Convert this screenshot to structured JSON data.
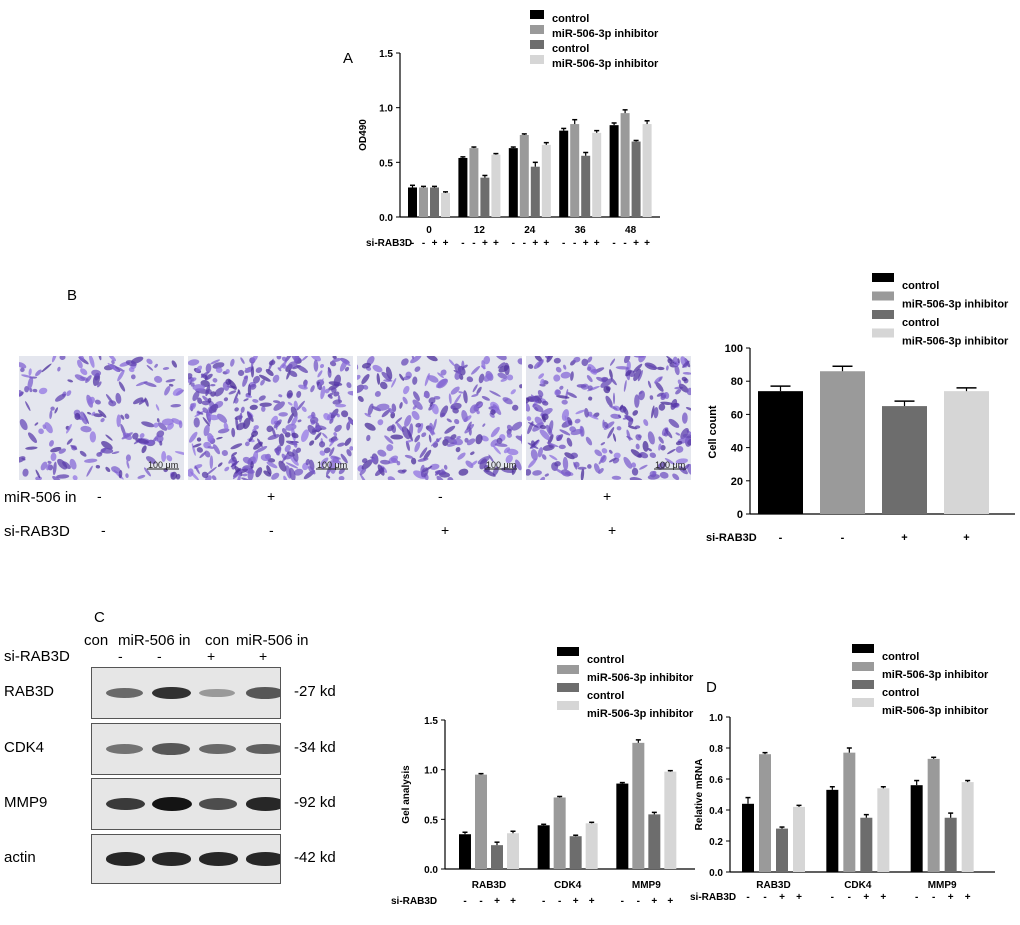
{
  "colors": {
    "control_black": "#000000",
    "inhibitor_mid": "#9a9a9a",
    "control_dark": "#6d6d6d",
    "inhibitor_light": "#d6d6d6"
  },
  "panels": {
    "A": "A",
    "B": "B",
    "C": "C",
    "D": "D"
  },
  "legend": {
    "items": [
      "control",
      "miR-506-3p inhibitor",
      "control",
      "miR-506-3p inhibitor"
    ]
  },
  "chart_data": [
    {
      "id": "A",
      "type": "bar",
      "ylabel": "OD490",
      "xlabel": "",
      "ylim": [
        0,
        1.5
      ],
      "yticks": [
        "0.0",
        "0.5",
        "1.0",
        "1.5"
      ],
      "categories": [
        "0",
        "12",
        "24",
        "36",
        "48"
      ],
      "series": [
        {
          "name": "control",
          "values": [
            0.27,
            0.54,
            0.63,
            0.79,
            0.84
          ],
          "errors": [
            0.02,
            0.01,
            0.01,
            0.02,
            0.02
          ]
        },
        {
          "name": "miR-506-3p inhibitor",
          "values": [
            0.27,
            0.63,
            0.75,
            0.85,
            0.95
          ],
          "errors": [
            0.01,
            0.01,
            0.01,
            0.04,
            0.03
          ]
        },
        {
          "name": "control",
          "values": [
            0.27,
            0.36,
            0.46,
            0.56,
            0.69
          ],
          "errors": [
            0.01,
            0.02,
            0.04,
            0.03,
            0.01
          ]
        },
        {
          "name": "miR-506-3p inhibitor",
          "values": [
            0.22,
            0.57,
            0.66,
            0.77,
            0.85
          ],
          "errors": [
            0.01,
            0.01,
            0.02,
            0.02,
            0.03
          ]
        }
      ],
      "treatment_label": "si-RAB3D",
      "treatment_signs": [
        "-",
        "-",
        "+",
        "+"
      ]
    },
    {
      "id": "B",
      "type": "bar",
      "ylabel": "Cell count",
      "xlabel": "",
      "ylim": [
        0,
        100
      ],
      "yticks": [
        "0",
        "20",
        "40",
        "60",
        "80",
        "100"
      ],
      "categories": [
        "",
        "",
        "",
        ""
      ],
      "series": [
        {
          "name": "control",
          "values": [
            74,
            0,
            0,
            0
          ],
          "errors": [
            3,
            0,
            0,
            0
          ]
        },
        {
          "name": "miR-506-3p inhibitor",
          "values": [
            0,
            86,
            0,
            0
          ],
          "errors": [
            0,
            3,
            0,
            0
          ]
        },
        {
          "name": "control",
          "values": [
            0,
            0,
            65,
            0
          ],
          "errors": [
            0,
            0,
            3,
            0
          ]
        },
        {
          "name": "miR-506-3p inhibitor",
          "values": [
            0,
            0,
            0,
            74
          ],
          "errors": [
            0,
            0,
            0,
            2
          ]
        }
      ],
      "treatment_label": "si-RAB3D",
      "treatment_signs": [
        "-",
        "-",
        "+",
        "+"
      ]
    },
    {
      "id": "C",
      "type": "bar",
      "ylabel": "Gel analysis",
      "xlabel": "",
      "ylim": [
        0,
        1.5
      ],
      "yticks": [
        "0.0",
        "0.5",
        "1.0",
        "1.5"
      ],
      "categories": [
        "RAB3D",
        "CDK4",
        "MMP9"
      ],
      "series": [
        {
          "name": "control",
          "values": [
            0.35,
            0.44,
            0.86
          ],
          "errors": [
            0.02,
            0.01,
            0.01
          ]
        },
        {
          "name": "miR-506-3p inhibitor",
          "values": [
            0.95,
            0.72,
            1.27
          ],
          "errors": [
            0.01,
            0.01,
            0.03
          ]
        },
        {
          "name": "control",
          "values": [
            0.24,
            0.33,
            0.55
          ],
          "errors": [
            0.03,
            0.01,
            0.02
          ]
        },
        {
          "name": "miR-506-3p inhibitor",
          "values": [
            0.36,
            0.46,
            0.98
          ],
          "errors": [
            0.02,
            0.01,
            0.01
          ]
        }
      ],
      "treatment_label": "si-RAB3D",
      "treatment_signs": [
        "-",
        "-",
        "+",
        "+"
      ]
    },
    {
      "id": "D",
      "type": "bar",
      "ylabel": "Relative mRNA",
      "xlabel": "",
      "ylim": [
        0,
        1.0
      ],
      "yticks": [
        "0.0",
        "0.2",
        "0.4",
        "0.6",
        "0.8",
        "1.0"
      ],
      "categories": [
        "RAB3D",
        "CDK4",
        "MMP9"
      ],
      "series": [
        {
          "name": "control",
          "values": [
            0.44,
            0.53,
            0.56
          ],
          "errors": [
            0.04,
            0.02,
            0.03
          ]
        },
        {
          "name": "miR-506-3p inhibitor",
          "values": [
            0.76,
            0.77,
            0.73
          ],
          "errors": [
            0.01,
            0.03,
            0.01
          ]
        },
        {
          "name": "control",
          "values": [
            0.28,
            0.35,
            0.35
          ],
          "errors": [
            0.01,
            0.02,
            0.03
          ]
        },
        {
          "name": "miR-506-3p inhibitor",
          "values": [
            0.42,
            0.54,
            0.58
          ],
          "errors": [
            0.01,
            0.01,
            0.01
          ]
        }
      ],
      "treatment_label": "si-RAB3D",
      "treatment_signs": [
        "-",
        "-",
        "+",
        "+"
      ]
    }
  ],
  "panelB_images": {
    "scale_labels": [
      "100 μm",
      "100 μm",
      "100 μm",
      "100 μm"
    ],
    "row1_label": "miR-506 in",
    "row1_signs": [
      "-",
      "+",
      "-",
      "+"
    ],
    "row2_label": "si-RAB3D",
    "row2_signs": [
      "-",
      "-",
      "+",
      "+"
    ]
  },
  "panelC_blot": {
    "header": [
      "con",
      "miR-506 in",
      "con",
      "miR-506 in"
    ],
    "si_label": "si-RAB3D",
    "si_signs": [
      "-",
      "-",
      "+",
      "+"
    ],
    "rows": [
      {
        "protein": "RAB3D",
        "kd": "-27 kd",
        "intensity": [
          0.55,
          0.85,
          0.3,
          0.65
        ]
      },
      {
        "protein": "CDK4",
        "kd": "-34 kd",
        "intensity": [
          0.5,
          0.65,
          0.55,
          0.6
        ]
      },
      {
        "protein": "MMP9",
        "kd": "-92 kd",
        "intensity": [
          0.8,
          1.0,
          0.7,
          0.9
        ]
      },
      {
        "protein": "actin",
        "kd": "-42 kd",
        "intensity": [
          0.9,
          0.9,
          0.9,
          0.9
        ]
      }
    ]
  }
}
